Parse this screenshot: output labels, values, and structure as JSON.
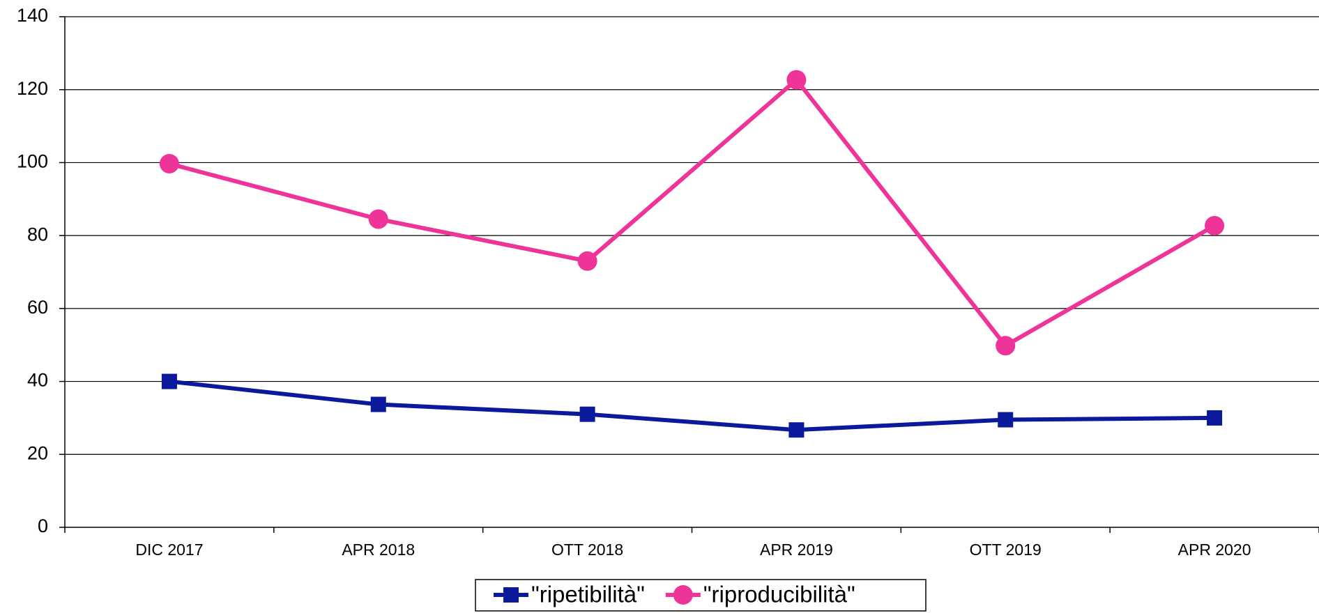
{
  "chart_data": {
    "type": "line",
    "categories": [
      "DIC 2017",
      "APR 2018",
      "OTT 2018",
      "APR 2019",
      "OTT 2019",
      "APR 2020"
    ],
    "series": [
      {
        "name": "\"ripetibilità\"",
        "color": "#0a1a9a",
        "marker": "square",
        "values": [
          40,
          33.7,
          31,
          26.7,
          29.5,
          30
        ]
      },
      {
        "name": "\"riproducibilità\"",
        "color": "#ee3399",
        "marker": "circle",
        "values": [
          99.7,
          84.5,
          73,
          122.7,
          49.8,
          82.7
        ]
      }
    ],
    "ylim": [
      0,
      140
    ],
    "yticks": [
      0,
      20,
      40,
      60,
      80,
      100,
      120,
      140
    ],
    "grid": true,
    "legend": "bottom"
  }
}
